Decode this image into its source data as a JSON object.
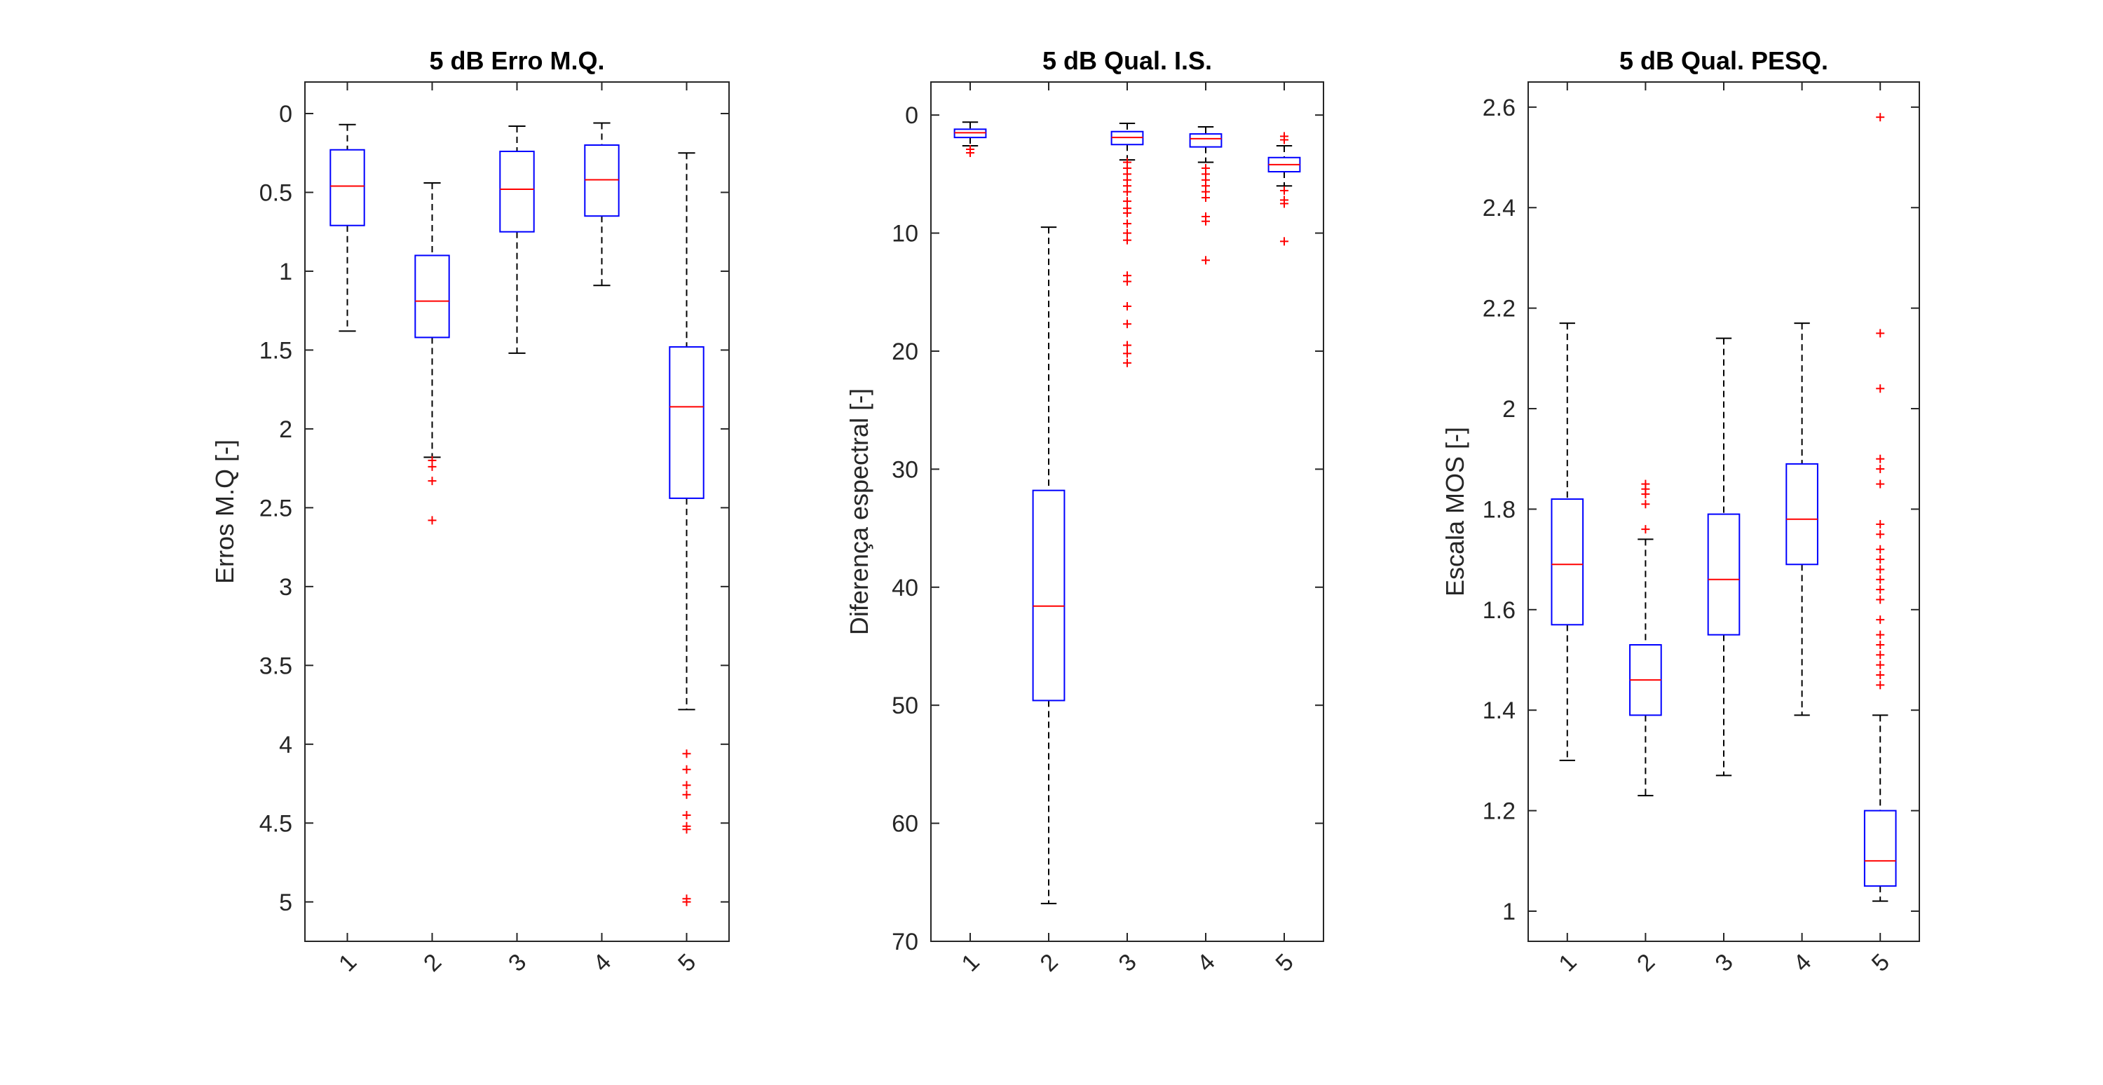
{
  "chart_data": [
    {
      "type": "box",
      "title": "5 dB Erro M.Q.",
      "xlabel": "",
      "ylabel": "Erros M.Q [-]",
      "y_reversed": true,
      "ylim": [
        -0.2,
        5.25
      ],
      "yticks": [
        0,
        0.5,
        1,
        1.5,
        2,
        2.5,
        3,
        3.5,
        4,
        4.5,
        5
      ],
      "ytick_labels": [
        "0",
        "0.5",
        "1",
        "1.5",
        "2",
        "2.5",
        "3",
        "3.5",
        "4",
        "4.5",
        "5"
      ],
      "categories": [
        "1",
        "2",
        "3",
        "4",
        "5"
      ],
      "boxes": [
        {
          "whisker_low": 0.07,
          "q1": 0.23,
          "median": 0.46,
          "q3": 0.71,
          "whisker_high": 1.38,
          "outliers": []
        },
        {
          "whisker_low": 0.44,
          "q1": 0.9,
          "median": 1.19,
          "q3": 1.42,
          "whisker_high": 2.18,
          "outliers": [
            2.2,
            2.24,
            2.33,
            2.58
          ]
        },
        {
          "whisker_low": 0.08,
          "q1": 0.24,
          "median": 0.48,
          "q3": 0.75,
          "whisker_high": 1.52,
          "outliers": []
        },
        {
          "whisker_low": 0.06,
          "q1": 0.2,
          "median": 0.42,
          "q3": 0.65,
          "whisker_high": 1.09,
          "outliers": []
        },
        {
          "whisker_low": 0.25,
          "q1": 1.48,
          "median": 1.86,
          "q3": 2.44,
          "whisker_high": 3.78,
          "outliers": [
            4.06,
            4.16,
            4.26,
            4.32,
            4.45,
            4.52,
            4.54,
            4.98,
            5.0
          ]
        }
      ]
    },
    {
      "type": "box",
      "title": "5 dB Qual. I.S.",
      "xlabel": "",
      "ylabel": "Diferença espectral [-]",
      "y_reversed": true,
      "ylim": [
        -2.8,
        70
      ],
      "yticks": [
        0,
        10,
        20,
        30,
        40,
        50,
        60,
        70
      ],
      "ytick_labels": [
        "0",
        "10",
        "20",
        "30",
        "40",
        "50",
        "60",
        "70"
      ],
      "categories": [
        "1",
        "2",
        "3",
        "4",
        "5"
      ],
      "boxes": [
        {
          "whisker_low": 0.6,
          "q1": 1.2,
          "median": 1.5,
          "q3": 1.9,
          "whisker_high": 2.6,
          "outliers": [
            2.9,
            3.2
          ]
        },
        {
          "whisker_low": 9.5,
          "q1": 31.8,
          "median": 41.6,
          "q3": 49.6,
          "whisker_high": 66.8,
          "outliers": []
        },
        {
          "whisker_low": 0.7,
          "q1": 1.4,
          "median": 1.9,
          "q3": 2.5,
          "whisker_high": 3.8,
          "outliers": [
            4.0,
            4.5,
            5.0,
            5.5,
            6.0,
            6.5,
            7.3,
            7.9,
            8.3,
            9.2,
            10.0,
            10.6,
            13.6,
            14.1,
            16.2,
            17.7,
            19.5,
            20.2,
            21.0
          ]
        },
        {
          "whisker_low": 1.0,
          "q1": 1.6,
          "median": 2.0,
          "q3": 2.7,
          "whisker_high": 4.0,
          "outliers": [
            4.5,
            5.0,
            5.5,
            6.0,
            6.5,
            7.0,
            8.6,
            9.0,
            12.3
          ]
        },
        {
          "whisker_low": 2.6,
          "q1": 3.6,
          "median": 4.2,
          "q3": 4.8,
          "whisker_high": 6.0,
          "outliers": [
            1.8,
            2.1,
            6.4,
            7.2,
            7.5,
            10.7
          ]
        }
      ]
    },
    {
      "type": "box",
      "title": "5 dB Qual. PESQ.",
      "xlabel": "",
      "ylabel": "Escala MOS [-]",
      "y_reversed": false,
      "ylim": [
        0.94,
        2.65
      ],
      "yticks": [
        1,
        1.2,
        1.4,
        1.6,
        1.8,
        2,
        2.2,
        2.4,
        2.6
      ],
      "ytick_labels": [
        "1",
        "1.2",
        "1.4",
        "1.6",
        "1.8",
        "2",
        "2.2",
        "2.4",
        "2.6"
      ],
      "categories": [
        "1",
        "2",
        "3",
        "4",
        "5"
      ],
      "boxes": [
        {
          "whisker_low": 1.3,
          "q1": 1.57,
          "median": 1.69,
          "q3": 1.82,
          "whisker_high": 2.17,
          "outliers": []
        },
        {
          "whisker_low": 1.23,
          "q1": 1.39,
          "median": 1.46,
          "q3": 1.53,
          "whisker_high": 1.74,
          "outliers": [
            1.76,
            1.81,
            1.83,
            1.84,
            1.85
          ]
        },
        {
          "whisker_low": 1.27,
          "q1": 1.55,
          "median": 1.66,
          "q3": 1.79,
          "whisker_high": 2.14,
          "outliers": []
        },
        {
          "whisker_low": 1.39,
          "q1": 1.69,
          "median": 1.78,
          "q3": 1.89,
          "whisker_high": 2.17,
          "outliers": []
        },
        {
          "whisker_low": 1.02,
          "q1": 1.05,
          "median": 1.1,
          "q3": 1.2,
          "whisker_high": 1.39,
          "outliers": [
            1.45,
            1.47,
            1.49,
            1.51,
            1.53,
            1.55,
            1.58,
            1.62,
            1.64,
            1.66,
            1.68,
            1.7,
            1.72,
            1.75,
            1.77,
            1.85,
            1.88,
            1.9,
            2.04,
            2.15,
            2.58
          ]
        }
      ]
    }
  ],
  "colors": {
    "box": "#0000ff",
    "median": "#ff0000",
    "outlier": "#ff0000",
    "whisker": "#000000",
    "axis": "#262626"
  }
}
